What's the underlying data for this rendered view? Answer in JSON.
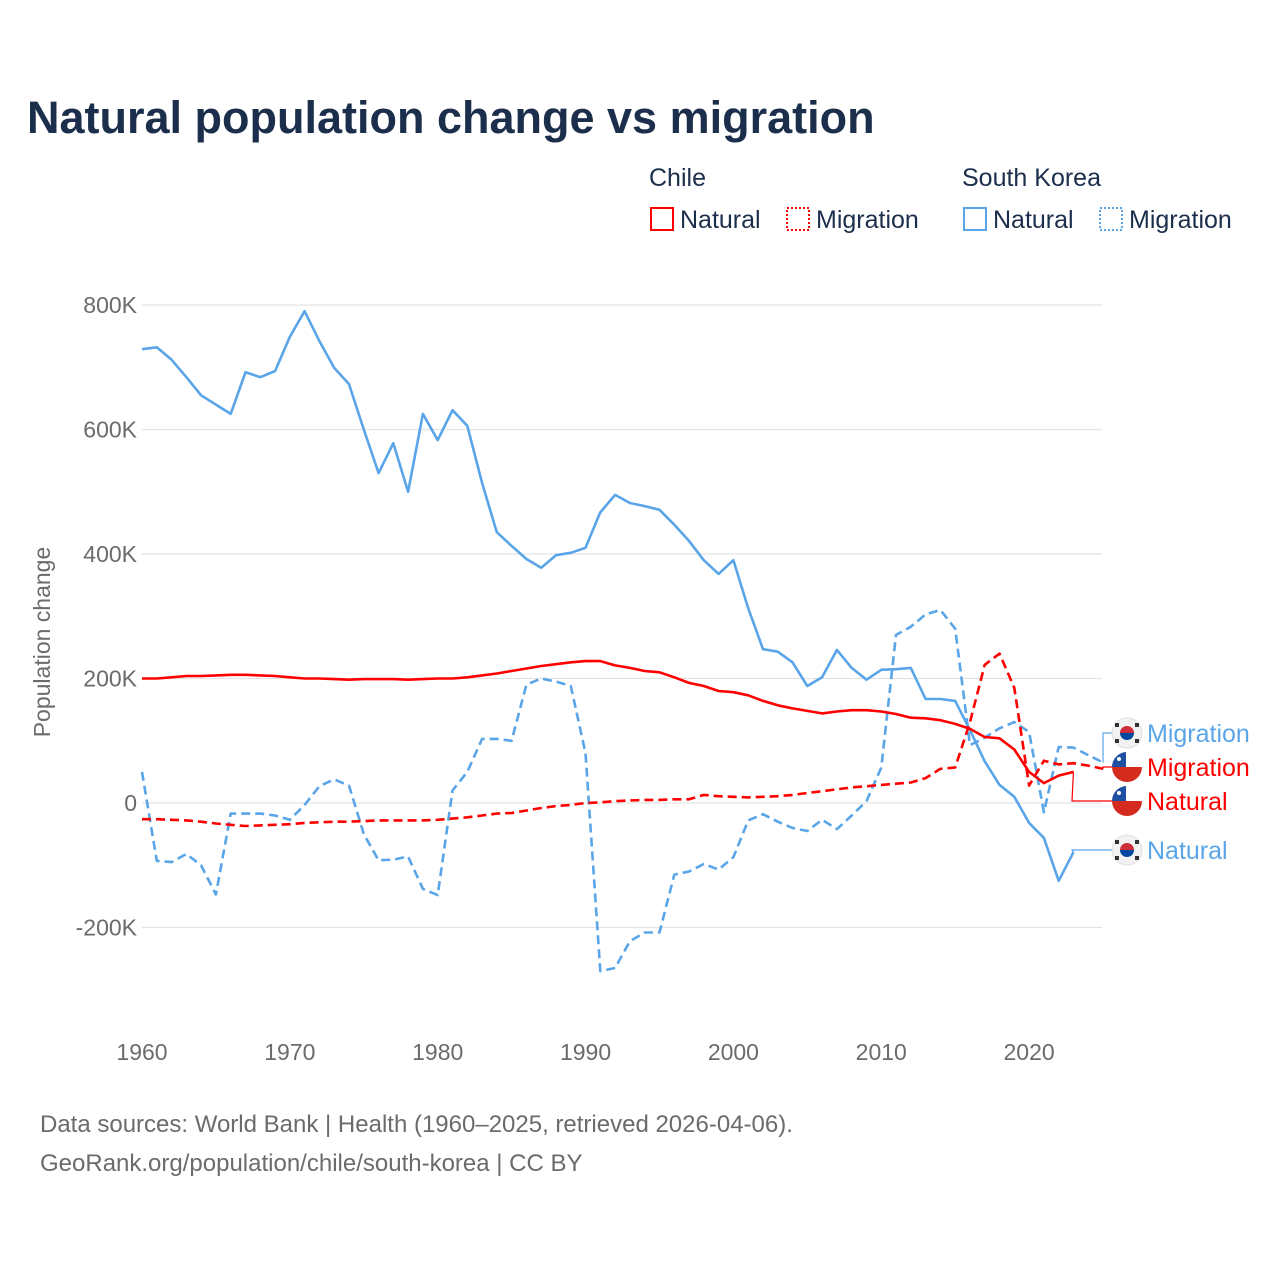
{
  "chart_data": {
    "type": "line",
    "title": "Natural population change vs migration",
    "xlabel": "",
    "ylabel": "Population change",
    "xlim": [
      1960,
      2025
    ],
    "ylim": [
      -300000,
      850000
    ],
    "grid": true,
    "x_ticks": [
      1960,
      1970,
      1980,
      1990,
      2000,
      2010,
      2020
    ],
    "x_tick_labels": [
      "1960",
      "1970",
      "1980",
      "1990",
      "2000",
      "2010",
      "2020"
    ],
    "y_ticks": [
      -200000,
      0,
      200000,
      400000,
      600000,
      800000
    ],
    "y_tick_labels": [
      "-200K",
      "0",
      "200K",
      "400K",
      "600K",
      "800K"
    ],
    "legend": {
      "placement": "top-right",
      "groups": [
        {
          "heading": "Chile",
          "items": [
            {
              "label": "Natural",
              "style": "solid",
              "color": "#ff0000"
            },
            {
              "label": "Migration",
              "style": "dotted",
              "color": "#ff0000"
            }
          ]
        },
        {
          "heading": "South Korea",
          "items": [
            {
              "label": "Natural",
              "style": "solid",
              "color": "#5aa5e8"
            },
            {
              "label": "Migration",
              "style": "dotted",
              "color": "#5aa5e8"
            }
          ]
        }
      ]
    },
    "series": [
      {
        "name": "South Korea Natural",
        "country": "South Korea",
        "kind": "Natural",
        "color": "#5aa5e8",
        "dash": false,
        "end_label": "Natural",
        "flag": "south-korea",
        "start_year": 1960,
        "values": [
          729000,
          732000,
          712000,
          684000,
          655000,
          640000,
          625000,
          692000,
          684000,
          694000,
          749000,
          790000,
          742000,
          699000,
          673000,
          600000,
          530000,
          578000,
          500000,
          625000,
          583000,
          631000,
          606000,
          514000,
          435000,
          413000,
          392000,
          378000,
          398000,
          402000,
          410000,
          467000,
          495000,
          482000,
          477000,
          471000,
          447000,
          421000,
          390000,
          368000,
          390000,
          313000,
          247000,
          243000,
          226000,
          188000,
          202000,
          246000,
          217000,
          198000,
          214000,
          215000,
          217000,
          167000,
          167000,
          164000,
          117000,
          67000,
          29000,
          10000,
          -32000,
          -56000,
          -125000,
          -79000
        ]
      },
      {
        "name": "South Korea Migration",
        "country": "South Korea",
        "kind": "Migration",
        "color": "#5aa5e8",
        "dash": true,
        "end_label": "Migration",
        "flag": "south-korea",
        "start_year": 1960,
        "values": [
          50000,
          -93000,
          -95000,
          -82000,
          -100000,
          -147000,
          -17000,
          -17000,
          -17000,
          -20000,
          -27000,
          -3000,
          27000,
          38000,
          28000,
          -50000,
          -92000,
          -91000,
          -86000,
          -138000,
          -148000,
          20000,
          50000,
          103000,
          103000,
          100000,
          190000,
          200000,
          195000,
          188000,
          80000,
          -270000,
          -265000,
          -222000,
          -208000,
          -208000,
          -115000,
          -110000,
          -98000,
          -107000,
          -87000,
          -28000,
          -18000,
          -30000,
          -40000,
          -45000,
          -27000,
          -42000,
          -20000,
          3000,
          57000,
          270000,
          283000,
          303000,
          310000,
          280000,
          93000,
          105000,
          120000,
          130000,
          114000,
          -15000,
          90000,
          89000,
          77000,
          65000
        ]
      },
      {
        "name": "Chile Natural",
        "country": "Chile",
        "kind": "Natural",
        "color": "#ff0000",
        "dash": false,
        "end_label": "Natural",
        "flag": "chile",
        "start_year": 1960,
        "values": [
          200000,
          200000,
          202000,
          204000,
          204000,
          205000,
          206000,
          206000,
          205000,
          204000,
          202000,
          200000,
          200000,
          199000,
          198000,
          199000,
          199000,
          199000,
          198000,
          199000,
          200000,
          200000,
          202000,
          205000,
          208000,
          212000,
          216000,
          220000,
          223000,
          226000,
          228000,
          228000,
          221000,
          217000,
          212000,
          210000,
          202000,
          193000,
          188000,
          180000,
          178000,
          173000,
          164000,
          157000,
          152000,
          148000,
          144000,
          147000,
          149000,
          149000,
          147000,
          143000,
          137000,
          136000,
          133000,
          127000,
          119000,
          106000,
          104000,
          86000,
          50000,
          32000,
          44000,
          50000
        ]
      },
      {
        "name": "Chile Migration",
        "country": "Chile",
        "kind": "Migration",
        "color": "#ff0000",
        "dash": true,
        "end_label": "Migration",
        "flag": "chile",
        "start_year": 1960,
        "values": [
          -26000,
          -26000,
          -27000,
          -28000,
          -30000,
          -33000,
          -35000,
          -37000,
          -36000,
          -35000,
          -34000,
          -32000,
          -31000,
          -30000,
          -30000,
          -29000,
          -28000,
          -28000,
          -28000,
          -28000,
          -27000,
          -25000,
          -23000,
          -20000,
          -17000,
          -16000,
          -12000,
          -8000,
          -5000,
          -3000,
          0,
          1000,
          3000,
          4000,
          5000,
          5000,
          6000,
          6000,
          13000,
          11000,
          10000,
          9000,
          10000,
          11000,
          13000,
          16000,
          19000,
          22000,
          25000,
          27000,
          29000,
          31000,
          33000,
          40000,
          55000,
          57000,
          130000,
          222000,
          240000,
          185000,
          28000,
          68000,
          62000,
          64000,
          60000,
          55000
        ]
      }
    ]
  },
  "source": {
    "line1": "Data sources: World Bank | Health (1960–2025, retrieved 2026-04-06).",
    "line2": "GeoRank.org/population/chile/south-korea | CC BY"
  }
}
